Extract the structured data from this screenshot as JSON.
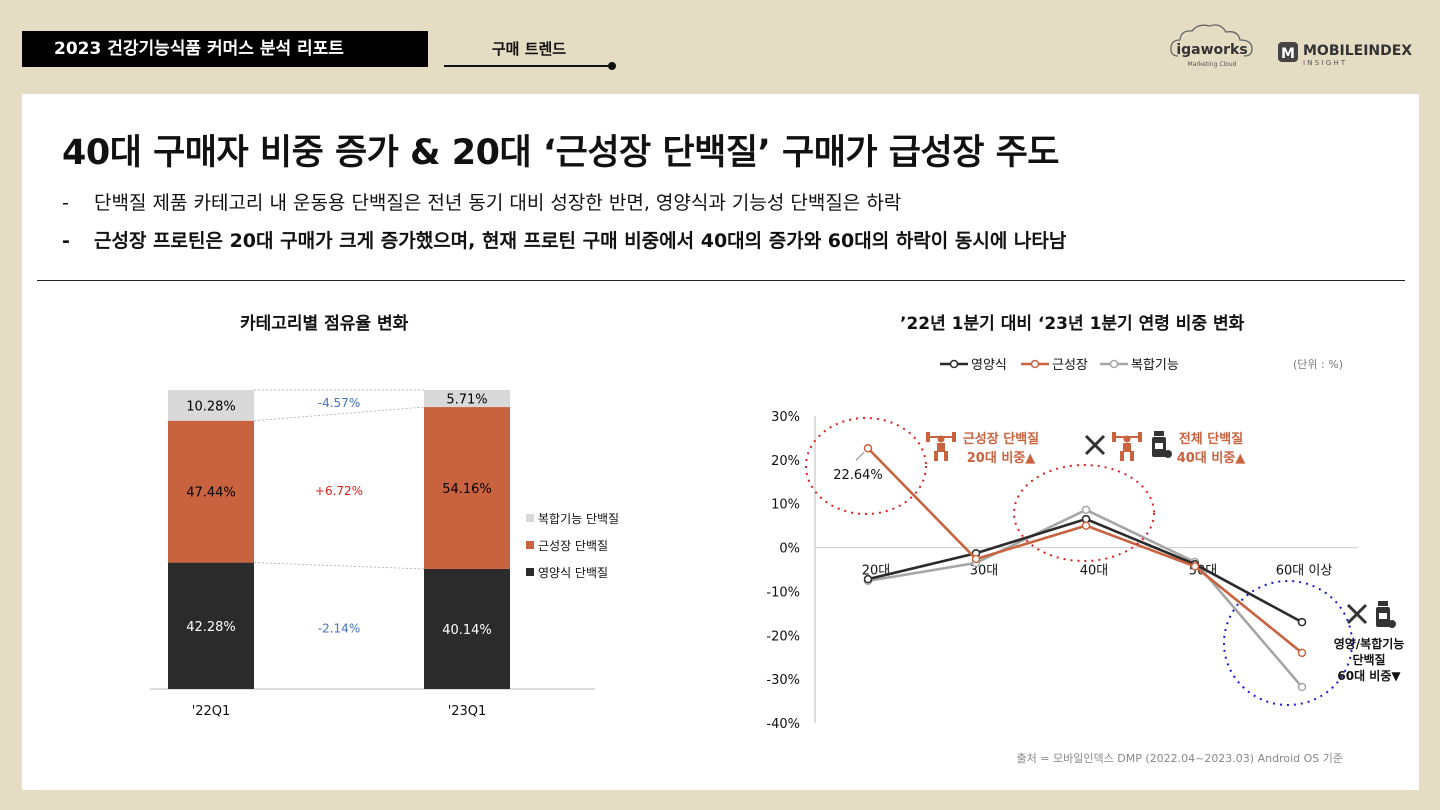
{
  "header": {
    "report_title": "2023 건강기능식품 커머스 분석 리포트",
    "section_tab": "구매 트렌드",
    "logo_igaworks": "igaworks",
    "logo_igaworks_sub": "Marketing Cloud",
    "logo_mobileindex": "MOBILEINDEX",
    "logo_mobileindex_sub": "I N S I G H T"
  },
  "headline": "40대 구매자 비중 증가 & 20대 ‘근성장 단백질’ 구매가 급성장 주도",
  "bullets": [
    "단백질 제품 카테고리 내 운동용 단백질은 전년 동기 대비 성장한 반면, 영양식과 기능성 단백질은 하락",
    "근성장 프로틴은 20대 구매가 크게 증가했으며, 현재 프로틴 구매 비중에서 40대의 증가와 60대의 하락이 동시에 나타남"
  ],
  "bullet_marker": "-",
  "colors": {
    "dark": "#2b2b2b",
    "orange": "#c9633f",
    "light_gray": "#d9d9d9",
    "line_gray": "#a6a6a6",
    "pos": "#e0201e",
    "neg": "#4472c4",
    "circle_red": "#e0201e",
    "circle_blue": "#1a1adb"
  },
  "chart_data": [
    {
      "type": "bar",
      "stacked": true,
      "title": "카테고리별 점유율 변화",
      "categories": [
        "'22Q1",
        "'23Q1"
      ],
      "series": [
        {
          "name": "영양식 단백질",
          "values": [
            42.28,
            40.14
          ],
          "labels": [
            "42.28%",
            "40.14%"
          ],
          "color": "#2b2b2b"
        },
        {
          "name": "근성장 단백질",
          "values": [
            47.44,
            54.16
          ],
          "labels": [
            "47.44%",
            "54.16%"
          ],
          "color": "#c9633f"
        },
        {
          "name": "복합기능 단백질",
          "values": [
            10.28,
            5.71
          ],
          "labels": [
            "10.28%",
            "5.71%"
          ],
          "color": "#d9d9d9"
        }
      ],
      "changes": [
        "-2.14%",
        "+6.72%",
        "-4.57%"
      ],
      "legend_position": "right",
      "ylim": [
        0,
        100
      ]
    },
    {
      "type": "line",
      "title": "’22년 1분기 대비 ‘23년 1분기 연령 비중 변화",
      "unit_note": "(단위 :  %)",
      "categories": [
        "20대",
        "30대",
        "40대",
        "50대",
        "60대 이상"
      ],
      "series": [
        {
          "name": "영양식",
          "values": [
            -7.2,
            -1.3,
            6.5,
            -3.8,
            -17.0
          ],
          "color": "#2b2b2b"
        },
        {
          "name": "근성장",
          "values": [
            22.64,
            -2.6,
            5.0,
            -4.3,
            -24.0
          ],
          "color": "#c9633f"
        },
        {
          "name": "복합기능",
          "values": [
            -7.6,
            -3.5,
            8.6,
            -3.3,
            -31.8
          ],
          "color": "#a6a6a6"
        }
      ],
      "yticks": [
        "30%",
        "20%",
        "10%",
        "0%",
        "-10%",
        "-20%",
        "-30%",
        "-40%"
      ],
      "ylim": [
        -40,
        30
      ],
      "point_label": "22.64%",
      "annotations": {
        "a20_line1": "근성장 단백질",
        "a20_line2": "20대 비중",
        "a40_line1": "전체 단백질",
        "a40_line2": "40대 비중",
        "a60_line1": "영양/복합기능",
        "a60_line2": "단백질",
        "a60_line3": "60대 비중"
      },
      "up_marker": "▲",
      "down_marker": "▼",
      "source": "출처 = 모바일인덱스 DMP (2022.04~2023.03) Android OS 기준",
      "legend_position": "top"
    }
  ]
}
